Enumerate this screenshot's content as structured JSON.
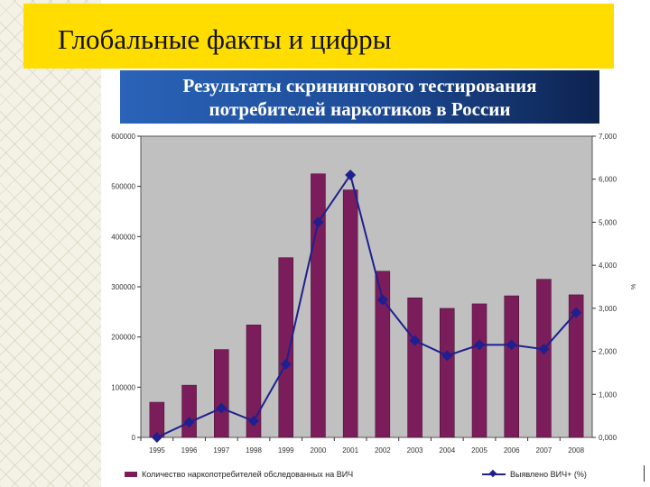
{
  "slide": {
    "title": "Глобальные факты и цифры",
    "subtitle_line1": "Результаты скринингового тестирования",
    "subtitle_line2": "потребителей наркотиков в России"
  },
  "colors": {
    "title_bar": "#ffdd00",
    "bar": "#7b1d5b",
    "line": "#1f1f8f",
    "plot_bg": "#c0c0c0"
  },
  "chart_data": {
    "type": "bar",
    "categories": [
      "1995",
      "1996",
      "1997",
      "1998",
      "1999",
      "2000",
      "2001",
      "2002",
      "2003",
      "2004",
      "2005",
      "2006",
      "2007",
      "2008"
    ],
    "series": [
      {
        "name": "Количество наркопотребителей обследованных на ВИЧ",
        "type": "bar",
        "axis": "left",
        "values": [
          70000,
          104000,
          175000,
          224000,
          358000,
          525000,
          493000,
          331000,
          278000,
          257000,
          266000,
          282000,
          315000,
          284000
        ]
      },
      {
        "name": "Выявлено ВИЧ+ (%)",
        "type": "line",
        "axis": "right",
        "values": [
          0.0,
          0.35,
          0.68,
          0.38,
          1.7,
          5.0,
          6.1,
          3.2,
          2.25,
          1.9,
          2.15,
          2.15,
          2.05,
          2.9
        ]
      }
    ],
    "ylim_left": [
      0,
      600000
    ],
    "left_ticks": [
      "0",
      "100000",
      "200000",
      "300000",
      "400000",
      "500000",
      "600000"
    ],
    "ylim_right": [
      0,
      7
    ],
    "right_ticks": [
      "0,000",
      "1,000",
      "2,000",
      "3,000",
      "4,000",
      "5,000",
      "6,000",
      "7,000"
    ],
    "right_axis_label": "%",
    "grid": false,
    "legend_position": "bottom"
  }
}
